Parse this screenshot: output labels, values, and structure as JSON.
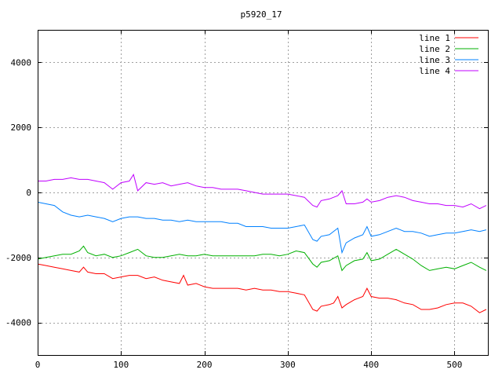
{
  "chart_data": {
    "type": "line",
    "title": "p5920_17",
    "xlabel": "",
    "ylabel": "",
    "xlim": [
      0,
      540
    ],
    "ylim": [
      -5000,
      5000
    ],
    "xticks": [
      0,
      100,
      200,
      300,
      400,
      500
    ],
    "yticks": [
      -4000,
      -2000,
      0,
      2000,
      4000
    ],
    "xtick_labels": [
      "0",
      "100",
      "200",
      "300",
      "400",
      "500"
    ],
    "ytick_labels": [
      "-4000",
      "-2000",
      "0",
      "2000",
      "4000"
    ],
    "grid": true,
    "legend_position": "top-right",
    "series": [
      {
        "name": "line 1",
        "color": "#ff0000",
        "points": [
          [
            0,
            -2200
          ],
          [
            10,
            -2250
          ],
          [
            20,
            -2300
          ],
          [
            30,
            -2350
          ],
          [
            40,
            -2400
          ],
          [
            50,
            -2450
          ],
          [
            55,
            -2300
          ],
          [
            60,
            -2450
          ],
          [
            70,
            -2500
          ],
          [
            80,
            -2500
          ],
          [
            90,
            -2650
          ],
          [
            100,
            -2600
          ],
          [
            110,
            -2550
          ],
          [
            120,
            -2550
          ],
          [
            130,
            -2650
          ],
          [
            140,
            -2600
          ],
          [
            150,
            -2700
          ],
          [
            160,
            -2750
          ],
          [
            170,
            -2800
          ],
          [
            175,
            -2550
          ],
          [
            180,
            -2850
          ],
          [
            190,
            -2800
          ],
          [
            200,
            -2900
          ],
          [
            210,
            -2950
          ],
          [
            220,
            -2950
          ],
          [
            230,
            -2950
          ],
          [
            240,
            -2950
          ],
          [
            250,
            -3000
          ],
          [
            260,
            -2950
          ],
          [
            270,
            -3000
          ],
          [
            280,
            -3000
          ],
          [
            290,
            -3050
          ],
          [
            300,
            -3050
          ],
          [
            310,
            -3100
          ],
          [
            320,
            -3150
          ],
          [
            330,
            -3600
          ],
          [
            335,
            -3650
          ],
          [
            340,
            -3500
          ],
          [
            350,
            -3450
          ],
          [
            355,
            -3400
          ],
          [
            360,
            -3200
          ],
          [
            365,
            -3550
          ],
          [
            370,
            -3450
          ],
          [
            380,
            -3300
          ],
          [
            390,
            -3200
          ],
          [
            395,
            -2950
          ],
          [
            400,
            -3200
          ],
          [
            410,
            -3250
          ],
          [
            420,
            -3250
          ],
          [
            430,
            -3300
          ],
          [
            440,
            -3400
          ],
          [
            450,
            -3450
          ],
          [
            460,
            -3600
          ],
          [
            470,
            -3600
          ],
          [
            480,
            -3550
          ],
          [
            490,
            -3450
          ],
          [
            500,
            -3400
          ],
          [
            510,
            -3400
          ],
          [
            520,
            -3500
          ],
          [
            530,
            -3700
          ],
          [
            538,
            -3600
          ]
        ]
      },
      {
        "name": "line 2",
        "color": "#00b000",
        "points": [
          [
            0,
            -2050
          ],
          [
            10,
            -2000
          ],
          [
            20,
            -1950
          ],
          [
            30,
            -1900
          ],
          [
            40,
            -1900
          ],
          [
            50,
            -1800
          ],
          [
            55,
            -1650
          ],
          [
            60,
            -1850
          ],
          [
            70,
            -1950
          ],
          [
            80,
            -1900
          ],
          [
            90,
            -2000
          ],
          [
            100,
            -1950
          ],
          [
            110,
            -1850
          ],
          [
            120,
            -1750
          ],
          [
            130,
            -1950
          ],
          [
            140,
            -2000
          ],
          [
            150,
            -2000
          ],
          [
            160,
            -1950
          ],
          [
            170,
            -1900
          ],
          [
            180,
            -1950
          ],
          [
            190,
            -1950
          ],
          [
            200,
            -1900
          ],
          [
            210,
            -1950
          ],
          [
            220,
            -1950
          ],
          [
            230,
            -1950
          ],
          [
            240,
            -1950
          ],
          [
            250,
            -1950
          ],
          [
            260,
            -1950
          ],
          [
            270,
            -1900
          ],
          [
            280,
            -1900
          ],
          [
            290,
            -1950
          ],
          [
            300,
            -1900
          ],
          [
            310,
            -1800
          ],
          [
            320,
            -1850
          ],
          [
            330,
            -2200
          ],
          [
            335,
            -2300
          ],
          [
            340,
            -2150
          ],
          [
            350,
            -2100
          ],
          [
            360,
            -1950
          ],
          [
            365,
            -2400
          ],
          [
            370,
            -2250
          ],
          [
            380,
            -2100
          ],
          [
            390,
            -2050
          ],
          [
            395,
            -1850
          ],
          [
            400,
            -2100
          ],
          [
            410,
            -2050
          ],
          [
            420,
            -1900
          ],
          [
            430,
            -1750
          ],
          [
            440,
            -1900
          ],
          [
            450,
            -2050
          ],
          [
            460,
            -2250
          ],
          [
            470,
            -2400
          ],
          [
            480,
            -2350
          ],
          [
            490,
            -2300
          ],
          [
            500,
            -2350
          ],
          [
            510,
            -2250
          ],
          [
            520,
            -2150
          ],
          [
            530,
            -2300
          ],
          [
            538,
            -2400
          ]
        ]
      },
      {
        "name": "line 3",
        "color": "#0080ff",
        "points": [
          [
            0,
            -300
          ],
          [
            10,
            -350
          ],
          [
            20,
            -400
          ],
          [
            30,
            -600
          ],
          [
            40,
            -700
          ],
          [
            50,
            -750
          ],
          [
            60,
            -700
          ],
          [
            70,
            -750
          ],
          [
            80,
            -800
          ],
          [
            90,
            -900
          ],
          [
            100,
            -800
          ],
          [
            110,
            -750
          ],
          [
            120,
            -750
          ],
          [
            130,
            -800
          ],
          [
            140,
            -800
          ],
          [
            150,
            -850
          ],
          [
            160,
            -850
          ],
          [
            170,
            -900
          ],
          [
            180,
            -850
          ],
          [
            190,
            -900
          ],
          [
            200,
            -900
          ],
          [
            210,
            -900
          ],
          [
            220,
            -900
          ],
          [
            230,
            -950
          ],
          [
            240,
            -950
          ],
          [
            250,
            -1050
          ],
          [
            260,
            -1050
          ],
          [
            270,
            -1050
          ],
          [
            280,
            -1100
          ],
          [
            290,
            -1100
          ],
          [
            300,
            -1100
          ],
          [
            310,
            -1050
          ],
          [
            320,
            -1000
          ],
          [
            330,
            -1450
          ],
          [
            335,
            -1500
          ],
          [
            340,
            -1350
          ],
          [
            350,
            -1300
          ],
          [
            360,
            -1100
          ],
          [
            365,
            -1850
          ],
          [
            370,
            -1550
          ],
          [
            380,
            -1400
          ],
          [
            390,
            -1300
          ],
          [
            395,
            -1050
          ],
          [
            400,
            -1350
          ],
          [
            410,
            -1300
          ],
          [
            420,
            -1200
          ],
          [
            430,
            -1100
          ],
          [
            440,
            -1200
          ],
          [
            450,
            -1200
          ],
          [
            460,
            -1250
          ],
          [
            470,
            -1350
          ],
          [
            480,
            -1300
          ],
          [
            490,
            -1250
          ],
          [
            500,
            -1250
          ],
          [
            510,
            -1200
          ],
          [
            520,
            -1150
          ],
          [
            530,
            -1200
          ],
          [
            538,
            -1150
          ]
        ]
      },
      {
        "name": "line 4",
        "color": "#c000ff",
        "points": [
          [
            0,
            350
          ],
          [
            10,
            350
          ],
          [
            20,
            400
          ],
          [
            30,
            400
          ],
          [
            40,
            450
          ],
          [
            50,
            400
          ],
          [
            60,
            400
          ],
          [
            70,
            350
          ],
          [
            80,
            300
          ],
          [
            90,
            100
          ],
          [
            100,
            300
          ],
          [
            110,
            350
          ],
          [
            115,
            550
          ],
          [
            120,
            50
          ],
          [
            130,
            300
          ],
          [
            140,
            250
          ],
          [
            150,
            300
          ],
          [
            160,
            200
          ],
          [
            170,
            250
          ],
          [
            180,
            300
          ],
          [
            190,
            200
          ],
          [
            200,
            150
          ],
          [
            210,
            150
          ],
          [
            220,
            100
          ],
          [
            230,
            100
          ],
          [
            240,
            100
          ],
          [
            250,
            50
          ],
          [
            260,
            0
          ],
          [
            270,
            -50
          ],
          [
            280,
            -50
          ],
          [
            290,
            -50
          ],
          [
            300,
            -50
          ],
          [
            310,
            -100
          ],
          [
            320,
            -150
          ],
          [
            330,
            -400
          ],
          [
            335,
            -450
          ],
          [
            340,
            -250
          ],
          [
            350,
            -200
          ],
          [
            360,
            -100
          ],
          [
            365,
            50
          ],
          [
            370,
            -350
          ],
          [
            380,
            -350
          ],
          [
            390,
            -300
          ],
          [
            395,
            -200
          ],
          [
            400,
            -300
          ],
          [
            410,
            -250
          ],
          [
            420,
            -150
          ],
          [
            430,
            -100
          ],
          [
            440,
            -150
          ],
          [
            450,
            -250
          ],
          [
            460,
            -300
          ],
          [
            470,
            -350
          ],
          [
            480,
            -350
          ],
          [
            490,
            -400
          ],
          [
            500,
            -400
          ],
          [
            510,
            -450
          ],
          [
            520,
            -350
          ],
          [
            530,
            -500
          ],
          [
            538,
            -400
          ]
        ]
      }
    ]
  }
}
